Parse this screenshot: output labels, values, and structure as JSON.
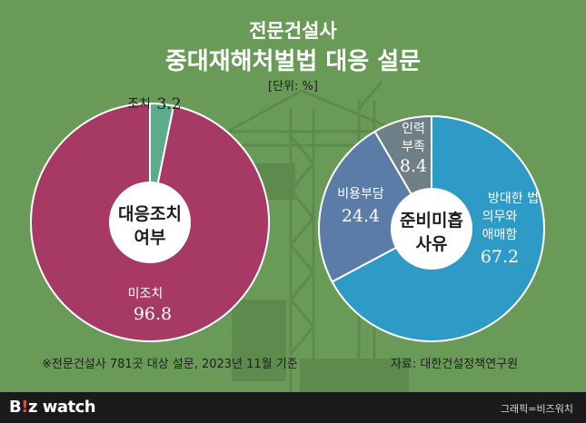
{
  "header": {
    "title_line1": "전문건설사",
    "title_line2": "중대재해처벌법 대응 설문",
    "unit": "[단위: %]"
  },
  "colors": {
    "background": "#6a9a58",
    "crimson": "#a63a64",
    "teal": "#5dab8c",
    "blue": "#2e9ac6",
    "steel": "#5b7ca6",
    "gray": "#6f7f88"
  },
  "chart_data": [
    {
      "type": "pie",
      "center_label": [
        "대응조치",
        "여부"
      ],
      "slices": [
        {
          "label": "조치",
          "value": 3.2,
          "color": "#5dab8c"
        },
        {
          "label": "미조치",
          "value": 96.8,
          "color": "#a63a64"
        }
      ]
    },
    {
      "type": "pie",
      "center_label": [
        "준비미흡",
        "사유"
      ],
      "slices": [
        {
          "label": [
            "방대한 법",
            "의무와",
            "애매함"
          ],
          "value": 67.2,
          "color": "#2e9ac6"
        },
        {
          "label": [
            "비용부담"
          ],
          "value": 24.4,
          "color": "#5b7ca6"
        },
        {
          "label": [
            "인력",
            "부족"
          ],
          "value": 8.4,
          "color": "#6f7f88"
        }
      ]
    }
  ],
  "footnote": "※전문건설사 781곳 대상 설문, 2023년 11월 기준",
  "source": "자료: 대한건설정책연구원",
  "footer": {
    "logo_left": "B",
    "logo_mid": "!",
    "logo_right": "z watch",
    "credit": "그래픽=비즈워치"
  }
}
